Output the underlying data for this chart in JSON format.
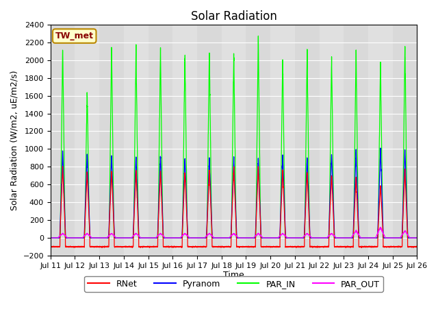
{
  "title": "Solar Radiation",
  "ylabel": "Solar Radiation (W/m2, uE/m2/s)",
  "xlabel": "Time",
  "ylim": [
    -200,
    2400
  ],
  "yticks": [
    -200,
    0,
    200,
    400,
    600,
    800,
    1000,
    1200,
    1400,
    1600,
    1800,
    2000,
    2200,
    2400
  ],
  "start_day": 11,
  "end_day": 26,
  "n_days": 15,
  "colors": {
    "RNet": "#FF0000",
    "Pyranom": "#0000FF",
    "PAR_IN": "#00FF00",
    "PAR_OUT": "#FF00FF"
  },
  "legend_labels": [
    "RNet",
    "Pyranom",
    "PAR_IN",
    "PAR_OUT"
  ],
  "station_label": "TW_met",
  "station_box_facecolor": "#FFFFCC",
  "station_box_edgecolor": "#BB8800",
  "plot_bg_color": "#DCDCDC",
  "title_fontsize": 12,
  "label_fontsize": 9,
  "tick_fontsize": 8,
  "par_in_peaks": [
    2200,
    1680,
    2150,
    2140,
    2130,
    2100,
    2100,
    2080,
    2250,
    2060,
    2100,
    2050,
    2090,
    2000,
    2180
  ],
  "pyranom_peaks": [
    980,
    960,
    940,
    930,
    930,
    910,
    900,
    905,
    900,
    940,
    910,
    960,
    980,
    1000,
    990
  ],
  "rnet_peaks": [
    800,
    740,
    760,
    760,
    760,
    750,
    760,
    790,
    800,
    760,
    750,
    720,
    680,
    600,
    760
  ],
  "par_out_scale": [
    50,
    50,
    50,
    50,
    50,
    50,
    50,
    50,
    50,
    50,
    50,
    50,
    80,
    120,
    80
  ],
  "rnet_night": -100,
  "pts_per_day": 288
}
